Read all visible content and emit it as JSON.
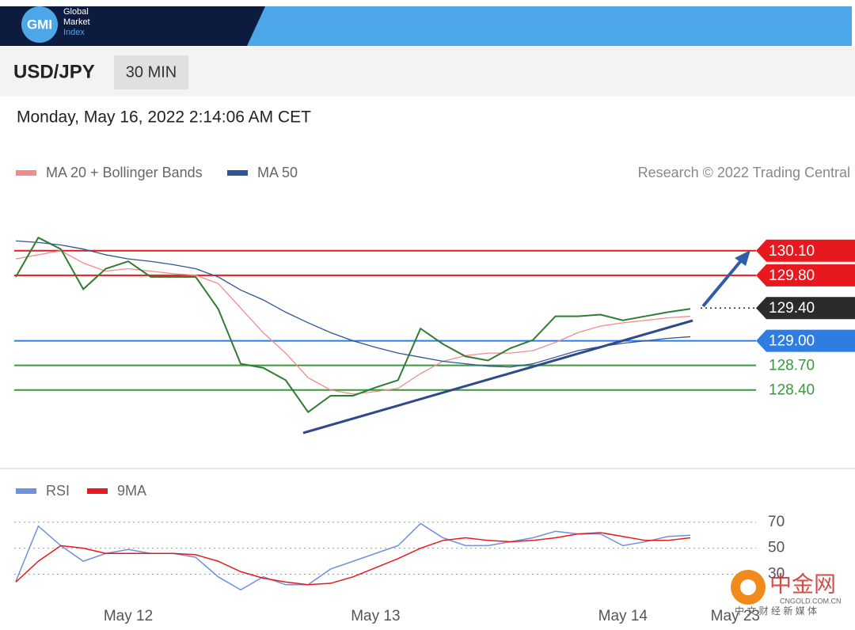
{
  "header": {
    "logo": "GMI",
    "brand": [
      "Global",
      "Market",
      "Index"
    ]
  },
  "toolbar": {
    "pair": "USD/JPY",
    "timeframe": "30 MIN"
  },
  "timestamp": "Monday, May 16, 2022 2:14:06 AM CET",
  "watermark": {
    "name": "中金网",
    "domain": "CNGOLD.COM.CN",
    "tagline": "中 文 财 经 新 媒 体"
  },
  "chart_data": [
    {
      "type": "line",
      "credit": "Research © 2022 Trading Central",
      "color": "#2e7d32",
      "values": [
        129.78,
        130.26,
        130.12,
        129.63,
        129.88,
        129.97,
        129.78,
        129.78,
        129.78,
        129.39,
        128.72,
        128.67,
        128.52,
        128.13,
        128.33,
        128.33,
        128.43,
        128.52,
        129.15,
        128.96,
        128.81,
        128.76,
        128.91,
        129.01,
        129.3,
        129.3,
        129.32,
        129.25,
        129.3,
        129.35,
        129.39,
        null,
        null
      ],
      "series": [
        {
          "name": "MA 20 + Bollinger Bands",
          "color": "#f28b8b",
          "values": [
            130.0,
            130.05,
            130.1,
            129.95,
            129.85,
            129.88,
            129.85,
            129.82,
            129.8,
            129.7,
            129.4,
            129.1,
            128.85,
            128.55,
            128.4,
            128.35,
            128.38,
            128.42,
            128.6,
            128.75,
            128.82,
            128.85,
            128.85,
            128.88,
            128.98,
            129.1,
            129.18,
            129.22,
            129.25,
            129.28,
            129.3,
            null,
            null
          ]
        },
        {
          "name": "MA 50",
          "color": "#2f5597",
          "values": [
            130.22,
            130.2,
            130.17,
            130.12,
            130.05,
            130.0,
            129.97,
            129.93,
            129.88,
            129.78,
            129.62,
            129.5,
            129.35,
            129.22,
            129.1,
            129.0,
            128.92,
            128.85,
            128.8,
            128.75,
            128.72,
            128.69,
            128.68,
            128.72,
            128.8,
            128.88,
            128.93,
            128.97,
            129.0,
            129.03,
            129.05,
            null,
            null
          ]
        }
      ],
      "levels": [
        {
          "value": 130.1,
          "label": "130.10",
          "color": "#e8191e",
          "line": "solid",
          "boxed": true
        },
        {
          "value": 129.8,
          "label": "129.80",
          "color": "#e8191e",
          "line": "solid",
          "boxed": true
        },
        {
          "value": 129.4,
          "label": "129.40",
          "color": "#2b2b2b",
          "line": "dotted",
          "boxed": true
        },
        {
          "value": 129.0,
          "label": "129.00",
          "color": "#2f7de1",
          "line": "solid",
          "boxed": true
        },
        {
          "value": 128.7,
          "label": "128.70",
          "color": "#3a9a3a",
          "line": "solid",
          "boxed": false
        },
        {
          "value": 128.4,
          "label": "128.40",
          "color": "#3a9a3a",
          "line": "solid",
          "boxed": false
        }
      ],
      "ylim": [
        127.46,
        130.89
      ]
    },
    {
      "type": "line",
      "categories": [
        null,
        null,
        null,
        null,
        null,
        "May 12",
        null,
        null,
        null,
        null,
        null,
        null,
        null,
        null,
        null,
        null,
        "May 13",
        null,
        null,
        null,
        null,
        null,
        null,
        null,
        null,
        null,
        null,
        "May 14",
        null,
        null,
        null,
        null,
        "May 23"
      ],
      "series": [
        {
          "name": "RSI",
          "color": "#6f8fe0",
          "values": [
            24.5,
            67,
            52,
            40,
            46,
            49,
            46,
            46,
            43,
            28,
            18,
            28,
            22,
            22,
            34,
            40,
            46,
            52,
            69,
            58,
            52,
            52,
            55,
            58,
            63,
            61,
            61,
            52,
            55,
            59,
            60,
            null,
            null
          ]
        },
        {
          "name": "9MA",
          "color": "#e8191e",
          "values": [
            24,
            40,
            52,
            50,
            46,
            46,
            46,
            46,
            45,
            40,
            32,
            27,
            24,
            22,
            23,
            28,
            35,
            42,
            50,
            56,
            58,
            56,
            55,
            56,
            58,
            61,
            62,
            59,
            56,
            56,
            58,
            null,
            null
          ]
        }
      ],
      "ylim": [
        6,
        79
      ],
      "yticks": [
        70,
        50,
        30
      ],
      "grid": true
    }
  ]
}
